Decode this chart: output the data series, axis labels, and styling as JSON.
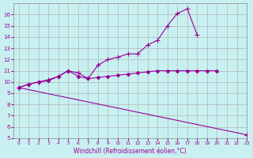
{
  "xlabel": "Windchill (Refroidissement éolien,°C)",
  "xlim": [
    -0.5,
    23
  ],
  "ylim": [
    5,
    17
  ],
  "yticks": [
    5,
    6,
    7,
    8,
    9,
    10,
    11,
    12,
    13,
    14,
    15,
    16
  ],
  "xticks": [
    0,
    1,
    2,
    3,
    4,
    5,
    6,
    7,
    8,
    9,
    10,
    11,
    12,
    13,
    14,
    15,
    16,
    17,
    18,
    19,
    20,
    21,
    22,
    23
  ],
  "bg_color": "#c8f0f0",
  "line_color": "#990099",
  "grid_color": "#aaaaaa",
  "line1_x": [
    0,
    1,
    2,
    3,
    4,
    5,
    6,
    7,
    8,
    9,
    10,
    11,
    12,
    13,
    14,
    15,
    16,
    17,
    18,
    19,
    20
  ],
  "line1_y": [
    9.5,
    9.8,
    10.0,
    10.1,
    10.5,
    11.0,
    10.5,
    10.3,
    10.4,
    10.5,
    10.6,
    10.7,
    10.8,
    10.9,
    11.0,
    11.0,
    11.0,
    11.0,
    11.0,
    11.0,
    11.0
  ],
  "line2_x": [
    0,
    1,
    2,
    3,
    4,
    5,
    6,
    7,
    8,
    9,
    10,
    11,
    12,
    13,
    14,
    15,
    16,
    17,
    18
  ],
  "line2_y": [
    9.5,
    9.8,
    10.0,
    10.2,
    10.5,
    11.0,
    10.8,
    10.3,
    11.5,
    12.0,
    12.2,
    12.5,
    12.5,
    13.3,
    13.7,
    15.0,
    16.1,
    16.5,
    14.2
  ],
  "line3_x": [
    0,
    23
  ],
  "line3_y": [
    9.5,
    5.3
  ]
}
